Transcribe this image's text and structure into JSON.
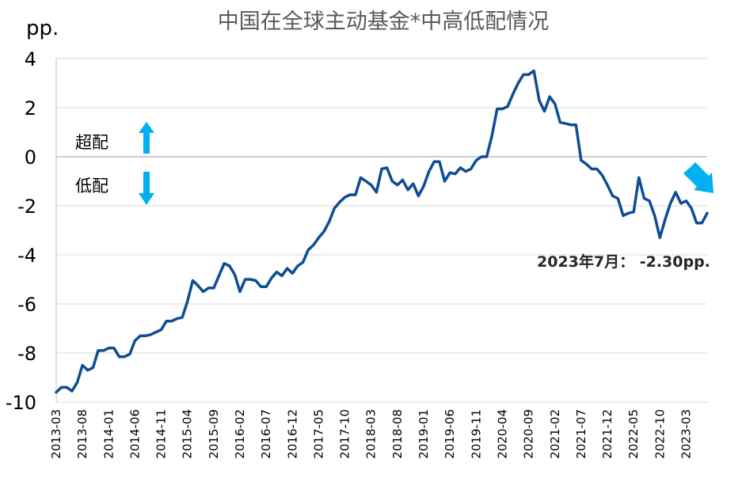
{
  "chart_data": {
    "type": "line",
    "title": "中国在全球主动基金*中高低配情况",
    "ylabel": "pp.",
    "ylim": [
      -10,
      4
    ],
    "yticks": [
      4,
      2,
      0,
      -2,
      -4,
      -6,
      -8,
      -10
    ],
    "xtick_labels": [
      "2013-03",
      "2013-08",
      "2014-01",
      "2014-06",
      "2014-11",
      "2015-04",
      "2015-09",
      "2016-02",
      "2016-07",
      "2016-12",
      "2017-05",
      "2017-10",
      "2018-03",
      "2018-08",
      "2019-01",
      "2019-06",
      "2019-11",
      "2020-04",
      "2020-09",
      "2021-02",
      "2021-07",
      "2021-12",
      "2022-05",
      "2022-10",
      "2023-03"
    ],
    "x_start": "2013-03",
    "x_end": "2023-07",
    "grid": "horizontal",
    "line_color": "#0e4d92",
    "arrow_color": "#00b0f0",
    "annotations": {
      "overweight": "超配",
      "underweight": "低配",
      "latest": "2023年7月： -2.30pp."
    },
    "series": [
      {
        "values": [
          -9.6,
          -9.4,
          -9.4,
          -9.55,
          -9.2,
          -8.5,
          -8.7,
          -8.6,
          -7.9,
          -7.9,
          -7.8,
          -7.8,
          -8.15,
          -8.15,
          -8.05,
          -7.5,
          -7.3,
          -7.3,
          -7.25,
          -7.15,
          -7.05,
          -6.7,
          -6.7,
          -6.6,
          -6.55,
          -5.9,
          -5.05,
          -5.25,
          -5.5,
          -5.35,
          -5.35,
          -4.85,
          -4.35,
          -4.45,
          -4.8,
          -5.5,
          -5.0,
          -5.0,
          -5.05,
          -5.3,
          -5.3,
          -4.95,
          -4.7,
          -4.85,
          -4.55,
          -4.75,
          -4.45,
          -4.3,
          -3.8,
          -3.6,
          -3.3,
          -3.05,
          -2.65,
          -2.1,
          -1.85,
          -1.65,
          -1.55,
          -1.55,
          -0.85,
          -1.0,
          -1.15,
          -1.45,
          -0.5,
          -0.45,
          -1.0,
          -1.15,
          -0.95,
          -1.35,
          -1.1,
          -1.6,
          -1.2,
          -0.6,
          -0.2,
          -0.2,
          -1.0,
          -0.65,
          -0.7,
          -0.45,
          -0.6,
          -0.5,
          -0.15,
          0.0,
          0.0,
          0.85,
          1.95,
          1.95,
          2.05,
          2.55,
          3.0,
          3.35,
          3.35,
          3.5,
          2.3,
          1.85,
          2.45,
          2.15,
          1.4,
          1.35,
          1.3,
          1.3,
          -0.15,
          -0.3,
          -0.5,
          -0.5,
          -0.75,
          -1.15,
          -1.6,
          -1.7,
          -2.4,
          -2.3,
          -2.25,
          -0.85,
          -1.7,
          -1.8,
          -2.4,
          -3.3,
          -2.55,
          -1.9,
          -1.45,
          -1.9,
          -1.8,
          -2.1,
          -2.7,
          -2.7,
          -2.3
        ]
      }
    ]
  }
}
